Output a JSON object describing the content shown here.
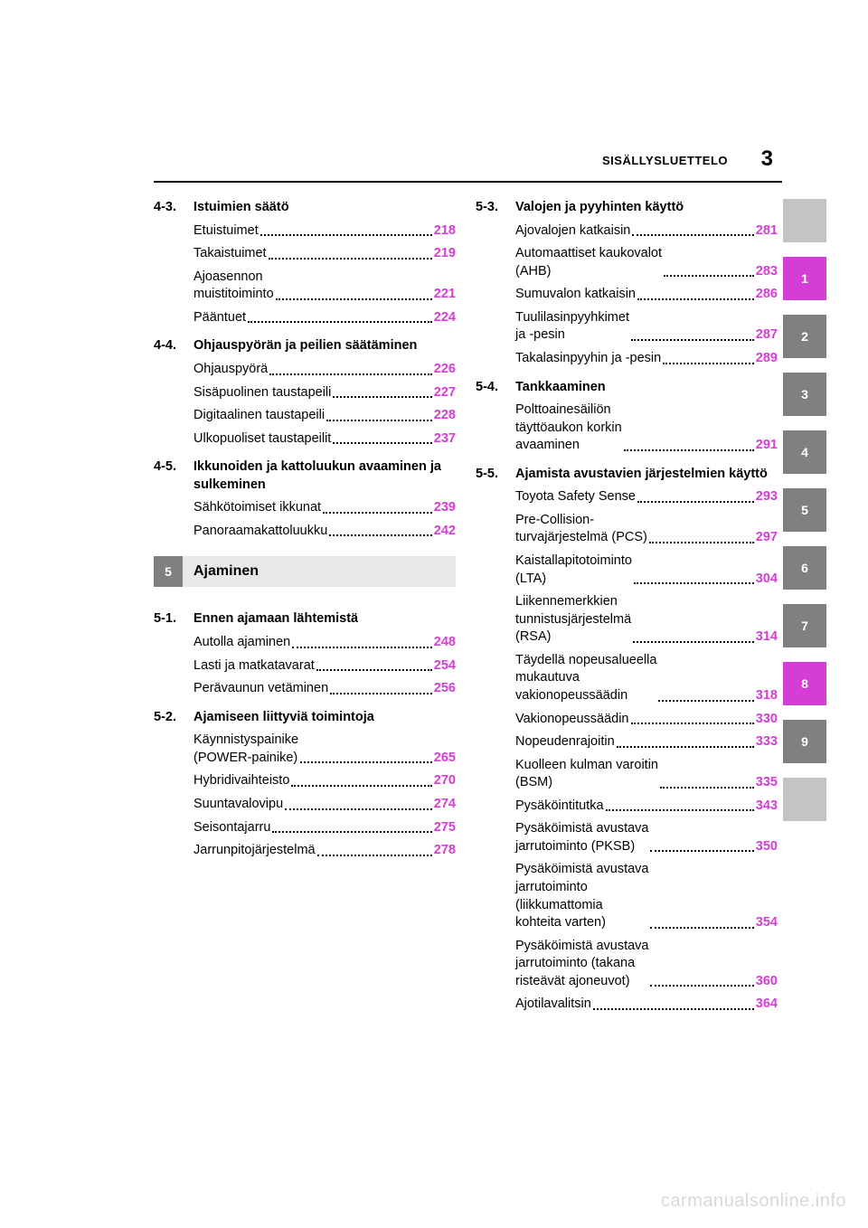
{
  "header": "SISÄLLYSLUETTELO",
  "page_number": "3",
  "colors": {
    "page_ref": "#d63cd6",
    "tab_inactive_bg": "#808080",
    "tab_active_bg": "#d63cd6",
    "tab_blank_bg": "#c4c4c4",
    "tab_text": "#ffffff",
    "chapter_box_bg": "#808080",
    "chapter_title_bg": "#e8e8e8",
    "watermark": "#d8d8d8"
  },
  "left_column": [
    {
      "type": "section",
      "num": "4-3.",
      "title": "Istuimien säätö",
      "entries": [
        {
          "label": "Etuistuimet",
          "page": "218"
        },
        {
          "label": "Takaistuimet",
          "page": "219"
        },
        {
          "label": "Ajoasennon\n  muistitoiminto",
          "page": "221"
        },
        {
          "label": "Pääntuet",
          "page": "224"
        }
      ]
    },
    {
      "type": "section",
      "num": "4-4.",
      "title": "Ohjauspyörän ja peilien säätäminen",
      "entries": [
        {
          "label": "Ohjauspyörä",
          "page": "226"
        },
        {
          "label": "Sisäpuolinen taustapeili",
          "page": "227"
        },
        {
          "label": "Digitaalinen taustapeili",
          "page": "228"
        },
        {
          "label": "Ulkopuoliset taustapeilit",
          "page": "237"
        }
      ]
    },
    {
      "type": "section",
      "num": "4-5.",
      "title": "Ikkunoiden ja kattoluukun avaaminen ja sulkeminen",
      "entries": [
        {
          "label": "Sähkötoimiset ikkunat",
          "page": "239"
        },
        {
          "label": "Panoraamakattoluukku",
          "page": "242"
        }
      ]
    },
    {
      "type": "chapter",
      "num": "5",
      "title": "Ajaminen"
    },
    {
      "type": "section",
      "num": "5-1.",
      "title": "Ennen ajamaan lähtemistä",
      "entries": [
        {
          "label": "Autolla ajaminen",
          "page": "248"
        },
        {
          "label": "Lasti ja matkatavarat",
          "page": "254"
        },
        {
          "label": "Perävaunun vetäminen",
          "page": "256"
        }
      ]
    },
    {
      "type": "section",
      "num": "5-2.",
      "title": "Ajamiseen liittyviä toimintoja",
      "entries": [
        {
          "label": "Käynnistyspainike\n  (POWER-painike)",
          "page": "265"
        },
        {
          "label": "Hybridivaihteisto",
          "page": "270"
        },
        {
          "label": "Suuntavalovipu",
          "page": "274"
        },
        {
          "label": "Seisontajarru",
          "page": "275"
        },
        {
          "label": "Jarrunpitojärjestelmä",
          "page": "278"
        }
      ]
    }
  ],
  "right_column": [
    {
      "type": "section",
      "num": "5-3.",
      "title": "Valojen ja pyyhinten käyttö",
      "entries": [
        {
          "label": "Ajovalojen katkaisin",
          "page": "281"
        },
        {
          "label": "Automaattiset kaukovalot\n  (AHB)",
          "page": "283"
        },
        {
          "label": "Sumuvalon katkaisin",
          "page": "286"
        },
        {
          "label": "Tuulilasinpyyhkimet\n  ja -pesin",
          "page": "287"
        },
        {
          "label": "Takalasinpyyhin ja -pesin",
          "page": "289"
        }
      ]
    },
    {
      "type": "section",
      "num": "5-4.",
      "title": "Tankkaaminen",
      "entries": [
        {
          "label": "Polttoainesäiliön\n  täyttöaukon korkin\n  avaaminen",
          "page": "291"
        }
      ]
    },
    {
      "type": "section",
      "num": "5-5.",
      "title": "Ajamista avustavien järjestelmien käyttö",
      "entries": [
        {
          "label": "Toyota Safety Sense",
          "page": "293"
        },
        {
          "label": "Pre-Collision-\n  turvajärjestelmä (PCS)",
          "page": "297"
        },
        {
          "label": "Kaistallapitotoiminto\n  (LTA)",
          "page": "304"
        },
        {
          "label": "Liikennemerkkien\n  tunnistusjärjestelmä\n  (RSA)",
          "page": "314"
        },
        {
          "label": "Täydellä nopeusalueella\n  mukautuva\n  vakionopeussäädin",
          "page": "318"
        },
        {
          "label": "Vakionopeussäädin",
          "page": "330"
        },
        {
          "label": "Nopeudenrajoitin",
          "page": "333"
        },
        {
          "label": "Kuolleen kulman varoitin\n  (BSM)",
          "page": "335"
        },
        {
          "label": "Pysäköintitutka",
          "page": "343"
        },
        {
          "label": "Pysäköimistä avustava\n  jarrutoiminto (PKSB)",
          "page": "350"
        },
        {
          "label": "Pysäköimistä avustava\n  jarrutoiminto\n  (liikkumattomia\n  kohteita varten)",
          "page": "354"
        },
        {
          "label": "Pysäköimistä avustava\n  jarrutoiminto (takana\n  risteävät ajoneuvot)",
          "page": "360"
        },
        {
          "label": "Ajotilavalitsin",
          "page": "364"
        }
      ]
    }
  ],
  "tabs": [
    {
      "label": "",
      "active": false,
      "blank": true
    },
    {
      "label": "1",
      "active": true,
      "blank": false
    },
    {
      "label": "2",
      "active": false,
      "blank": false
    },
    {
      "label": "3",
      "active": false,
      "blank": false
    },
    {
      "label": "4",
      "active": false,
      "blank": false
    },
    {
      "label": "5",
      "active": false,
      "blank": false
    },
    {
      "label": "6",
      "active": false,
      "blank": false
    },
    {
      "label": "7",
      "active": false,
      "blank": false
    },
    {
      "label": "8",
      "active": true,
      "blank": false
    },
    {
      "label": "9",
      "active": false,
      "blank": false
    },
    {
      "label": "",
      "active": false,
      "blank": true
    }
  ],
  "watermark": "carmanualsonline.info"
}
